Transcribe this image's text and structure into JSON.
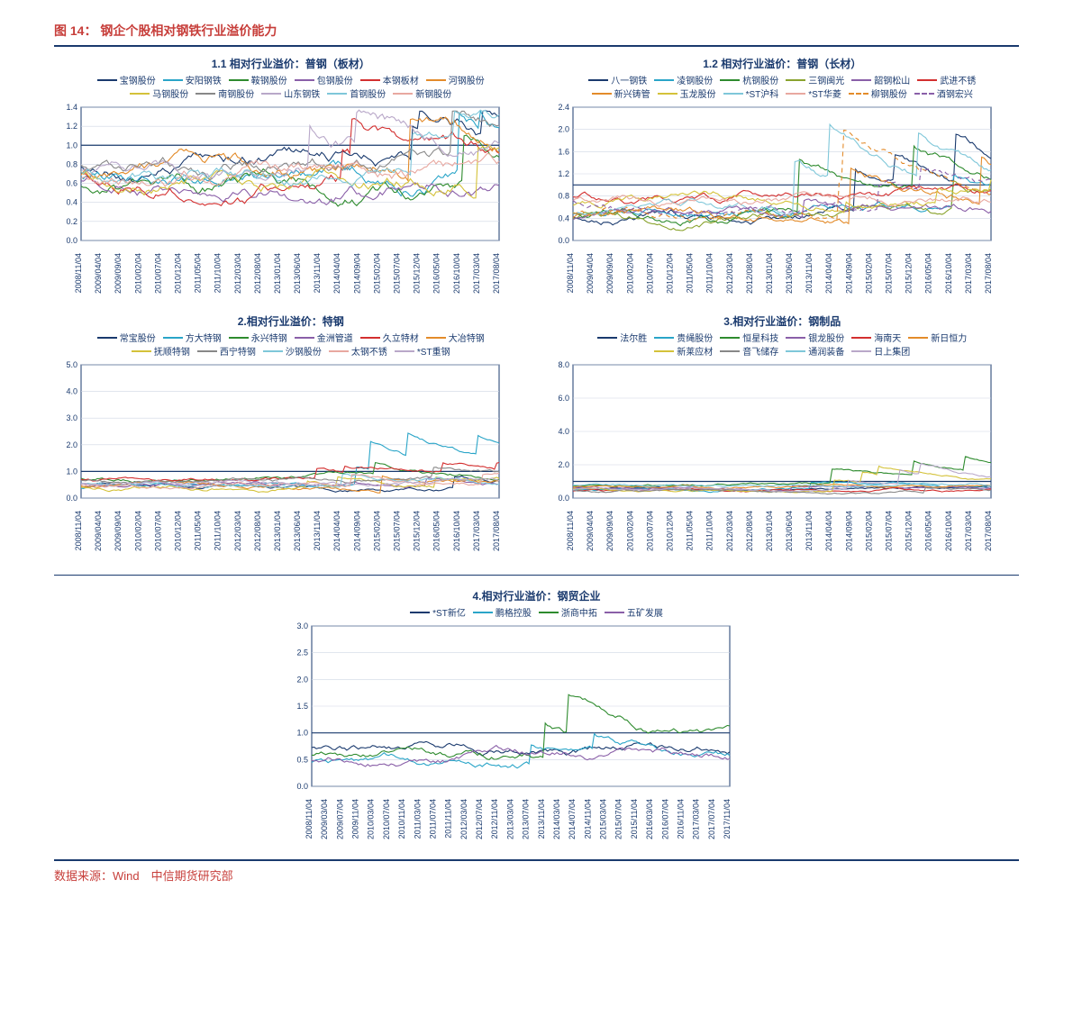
{
  "figure_label": "图 14：",
  "figure_title": "钢企个股相对钢铁行业溢价能力",
  "source": "数据来源：Wind　中信期货研究部",
  "x_labels": [
    "2008/11/04",
    "2009/04/04",
    "2009/09/04",
    "2010/02/04",
    "2010/07/04",
    "2010/12/04",
    "2011/05/04",
    "2011/10/04",
    "2012/03/04",
    "2012/08/04",
    "2013/01/04",
    "2013/06/04",
    "2013/11/04",
    "2014/04/04",
    "2014/09/04",
    "2015/02/04",
    "2015/07/04",
    "2015/12/04",
    "2016/05/04",
    "2016/10/04",
    "2017/03/04",
    "2017/08/04"
  ],
  "x_labels_5": [
    "2008/11/04",
    "2009/03/04",
    "2009/07/04",
    "2009/11/04",
    "2010/03/04",
    "2010/07/04",
    "2010/11/04",
    "2011/03/04",
    "2011/07/04",
    "2011/11/04",
    "2012/03/04",
    "2012/07/04",
    "2012/11/04",
    "2013/03/04",
    "2013/07/04",
    "2013/11/04",
    "2014/03/04",
    "2014/07/04",
    "2014/11/04",
    "2015/03/04",
    "2015/07/04",
    "2015/11/04",
    "2016/03/04",
    "2016/07/04",
    "2016/11/04",
    "2017/03/04",
    "2017/07/04",
    "2017/11/04"
  ],
  "style": {
    "axis_color": "#1a3a6e",
    "grid_color": "#cfd6e3",
    "ref_line_color": "#1a3a6e",
    "bg": "#ffffff",
    "tick_fontsize": 9,
    "title_fontsize": 12,
    "legend_fontsize": 10
  },
  "panels": [
    {
      "id": "p1",
      "title": "1.1 相对行业溢价：普钢（板材）",
      "ylim": [
        0.0,
        1.4
      ],
      "ytick_step": 0.2,
      "ref": 1.0,
      "series": [
        {
          "name": "宝钢股份",
          "color": "#1a3a6e",
          "dash": ""
        },
        {
          "name": "安阳钢铁",
          "color": "#2aa5c8",
          "dash": ""
        },
        {
          "name": "鞍钢股份",
          "color": "#2e8b2e",
          "dash": ""
        },
        {
          "name": "包钢股份",
          "color": "#8a5fa8",
          "dash": ""
        },
        {
          "name": "本钢板材",
          "color": "#d32f2f",
          "dash": ""
        },
        {
          "name": "河钢股份",
          "color": "#e38b2a",
          "dash": ""
        },
        {
          "name": "马钢股份",
          "color": "#d4c23a",
          "dash": ""
        },
        {
          "name": "南钢股份",
          "color": "#888888",
          "dash": ""
        },
        {
          "name": "山东钢铁",
          "color": "#b9a8c9",
          "dash": ""
        },
        {
          "name": "首钢股份",
          "color": "#7fc7d9",
          "dash": ""
        },
        {
          "name": "新钢股份",
          "color": "#e8a8a0",
          "dash": ""
        }
      ]
    },
    {
      "id": "p2",
      "title": "1.2 相对行业溢价：普钢（长材）",
      "ylim": [
        0.0,
        2.4
      ],
      "ytick_step": 0.4,
      "ref": 1.0,
      "series": [
        {
          "name": "八一钢铁",
          "color": "#1a3a6e",
          "dash": ""
        },
        {
          "name": "凌钢股份",
          "color": "#2aa5c8",
          "dash": ""
        },
        {
          "name": "杭钢股份",
          "color": "#2e8b2e",
          "dash": ""
        },
        {
          "name": "三钢闽光",
          "color": "#8aa32e",
          "dash": ""
        },
        {
          "name": "韶钢松山",
          "color": "#8a5fa8",
          "dash": ""
        },
        {
          "name": "武进不锈",
          "color": "#d32f2f",
          "dash": ""
        },
        {
          "name": "新兴铸管",
          "color": "#e38b2a",
          "dash": ""
        },
        {
          "name": "玉龙股份",
          "color": "#d4c23a",
          "dash": ""
        },
        {
          "name": "*ST沪科",
          "color": "#7fc7d9",
          "dash": ""
        },
        {
          "name": "*ST华菱",
          "color": "#e8a8a0",
          "dash": ""
        },
        {
          "name": "柳钢股份",
          "color": "#e38b2a",
          "dash": "5,4"
        },
        {
          "name": "酒钢宏兴",
          "color": "#8a5fa8",
          "dash": "5,4"
        }
      ]
    },
    {
      "id": "p3",
      "title": "2.相对行业溢价：特钢",
      "ylim": [
        0.0,
        5.0
      ],
      "ytick_step": 1.0,
      "ref": 1.0,
      "series": [
        {
          "name": "常宝股份",
          "color": "#1a3a6e",
          "dash": ""
        },
        {
          "name": "方大特钢",
          "color": "#2aa5c8",
          "dash": ""
        },
        {
          "name": "永兴特钢",
          "color": "#2e8b2e",
          "dash": ""
        },
        {
          "name": "金洲管道",
          "color": "#8a5fa8",
          "dash": ""
        },
        {
          "name": "久立特材",
          "color": "#d32f2f",
          "dash": ""
        },
        {
          "name": "大冶特钢",
          "color": "#e38b2a",
          "dash": ""
        },
        {
          "name": "抚顺特钢",
          "color": "#d4c23a",
          "dash": ""
        },
        {
          "name": "西宁特钢",
          "color": "#888888",
          "dash": ""
        },
        {
          "name": "沙钢股份",
          "color": "#7fc7d9",
          "dash": ""
        },
        {
          "name": "太钢不锈",
          "color": "#e8a8a0",
          "dash": ""
        },
        {
          "name": "*ST重钢",
          "color": "#b9a8c9",
          "dash": ""
        }
      ]
    },
    {
      "id": "p4",
      "title": "3.相对行业溢价：钢制品",
      "ylim": [
        0.0,
        8.0
      ],
      "ytick_step": 2.0,
      "ref": 1.0,
      "series": [
        {
          "name": "法尔胜",
          "color": "#1a3a6e",
          "dash": ""
        },
        {
          "name": "贵绳股份",
          "color": "#2aa5c8",
          "dash": ""
        },
        {
          "name": "恒星科技",
          "color": "#2e8b2e",
          "dash": ""
        },
        {
          "name": "银龙股份",
          "color": "#8a5fa8",
          "dash": ""
        },
        {
          "name": "海南天",
          "color": "#d32f2f",
          "dash": ""
        },
        {
          "name": "新日恒力",
          "color": "#e38b2a",
          "dash": ""
        },
        {
          "name": "新莱应材",
          "color": "#d4c23a",
          "dash": ""
        },
        {
          "name": "音飞储存",
          "color": "#888888",
          "dash": ""
        },
        {
          "name": "通润装备",
          "color": "#7fc7d9",
          "dash": ""
        },
        {
          "name": "日上集团",
          "color": "#b9a8c9",
          "dash": ""
        }
      ]
    },
    {
      "id": "p5",
      "title": "4.相对行业溢价：钢贸企业",
      "ylim": [
        0.0,
        3.0
      ],
      "ytick_step": 0.5,
      "ref": 1.0,
      "series": [
        {
          "name": "*ST新亿",
          "color": "#1a3a6e",
          "dash": ""
        },
        {
          "name": "鹏格控股",
          "color": "#2aa5c8",
          "dash": ""
        },
        {
          "name": "浙商中拓",
          "color": "#2e8b2e",
          "dash": ""
        },
        {
          "name": "五矿发展",
          "color": "#8a5fa8",
          "dash": ""
        }
      ]
    }
  ]
}
